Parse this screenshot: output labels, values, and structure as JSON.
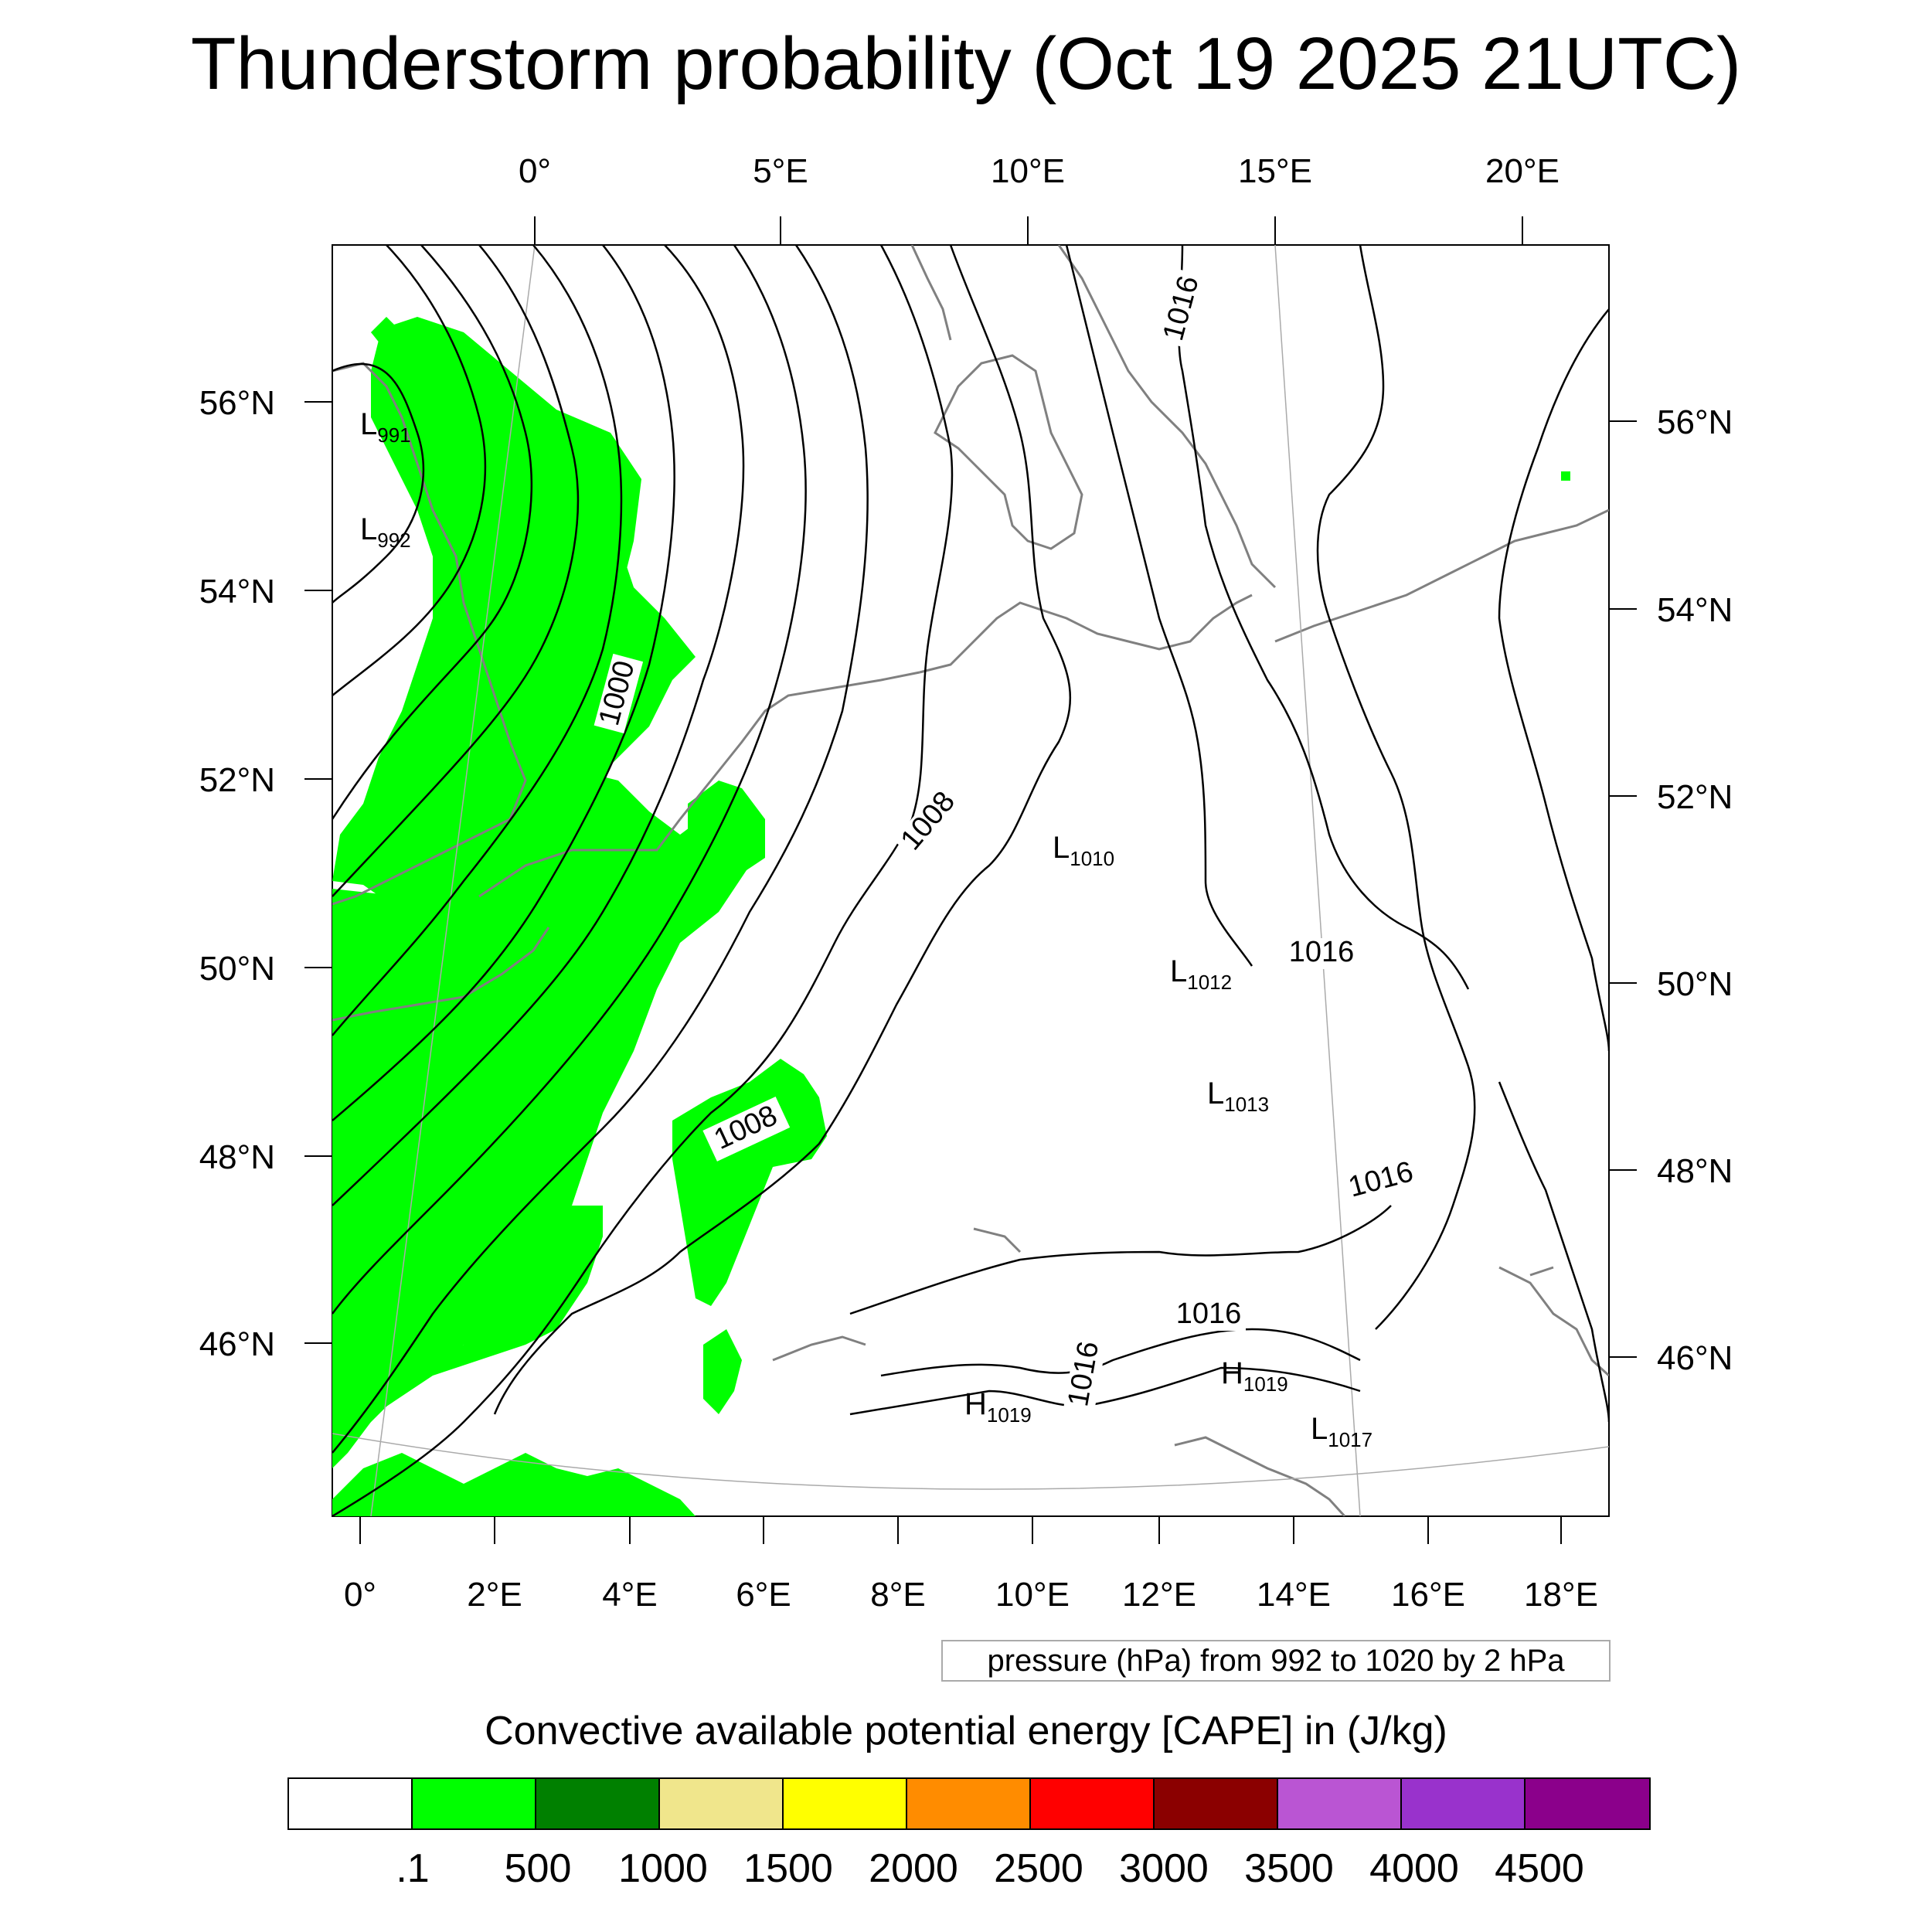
{
  "title": "Thunderstorm probability (Oct 19 2025 21UTC)",
  "top_lon_labels": [
    "0°",
    "5°E",
    "10°E",
    "15°E",
    "20°E"
  ],
  "bottom_lon_labels": [
    "0°",
    "2°E",
    "4°E",
    "6°E",
    "8°E",
    "10°E",
    "12°E",
    "14°E",
    "16°E",
    "18°E"
  ],
  "left_lat_labels": [
    "56°N",
    "54°N",
    "52°N",
    "50°N",
    "48°N",
    "46°N"
  ],
  "right_lat_labels": [
    "56°N",
    "54°N",
    "52°N",
    "50°N",
    "48°N",
    "46°N"
  ],
  "contour_labels": [
    "1000",
    "1008",
    "1008",
    "1016",
    "1016",
    "1016",
    "1016",
    "1016"
  ],
  "pressure_centers": [
    {
      "type": "L",
      "value": "991"
    },
    {
      "type": "L",
      "value": "992"
    },
    {
      "type": "L",
      "value": "1010"
    },
    {
      "type": "L",
      "value": "1012"
    },
    {
      "type": "L",
      "value": "1013"
    },
    {
      "type": "H",
      "value": "1019"
    },
    {
      "type": "H",
      "value": "1019"
    },
    {
      "type": "L",
      "value": "1017"
    }
  ],
  "footnote": "pressure (hPa) from 992 to 1020 by 2 hPa",
  "colorbar": {
    "title": "Convective available potential energy [CAPE] in (J/kg)",
    "colors": [
      "#ffffff",
      "#00ff00",
      "#008000",
      "#f0e68c",
      "#ffff00",
      "#ff8c00",
      "#ff0000",
      "#8b0000",
      "#ba55d3",
      "#9932cc",
      "#8b008b"
    ],
    "labels": [
      ".1",
      "500",
      "1000",
      "1500",
      "2000",
      "2500",
      "3000",
      "3500",
      "4000",
      "4500"
    ]
  },
  "colors": {
    "cape_fill": "#00ff00",
    "coastline": "#808080",
    "isobar": "#000000"
  }
}
